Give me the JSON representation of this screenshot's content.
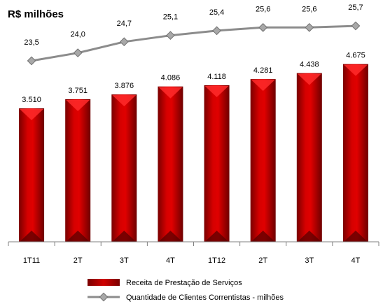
{
  "chart_data": {
    "type": "bar",
    "title": "R$ milhões",
    "categories": [
      "1T11",
      "2T",
      "3T",
      "4T",
      "1T12",
      "2T",
      "3T",
      "4T"
    ],
    "series": [
      {
        "name": "Receita de Prestação de Serviços",
        "type": "bar",
        "values": [
          3510,
          3751,
          3876,
          4086,
          4118,
          4281,
          4438,
          4675
        ],
        "labels": [
          "3.510",
          "3.751",
          "3.876",
          "4.086",
          "4.118",
          "4.281",
          "4.438",
          "4.675"
        ],
        "color": "#cc0000"
      },
      {
        "name": "Quantidade de Clientes Correntistas - milhões",
        "type": "line",
        "values": [
          23.5,
          24.0,
          24.7,
          25.1,
          25.4,
          25.6,
          25.6,
          25.7
        ],
        "labels": [
          "23,5",
          "24,0",
          "24,7",
          "25,1",
          "25,4",
          "25,6",
          "25,6",
          "25,7"
        ],
        "color": "#8c8c8c"
      }
    ],
    "legend": "bottom-center",
    "grid": false
  }
}
